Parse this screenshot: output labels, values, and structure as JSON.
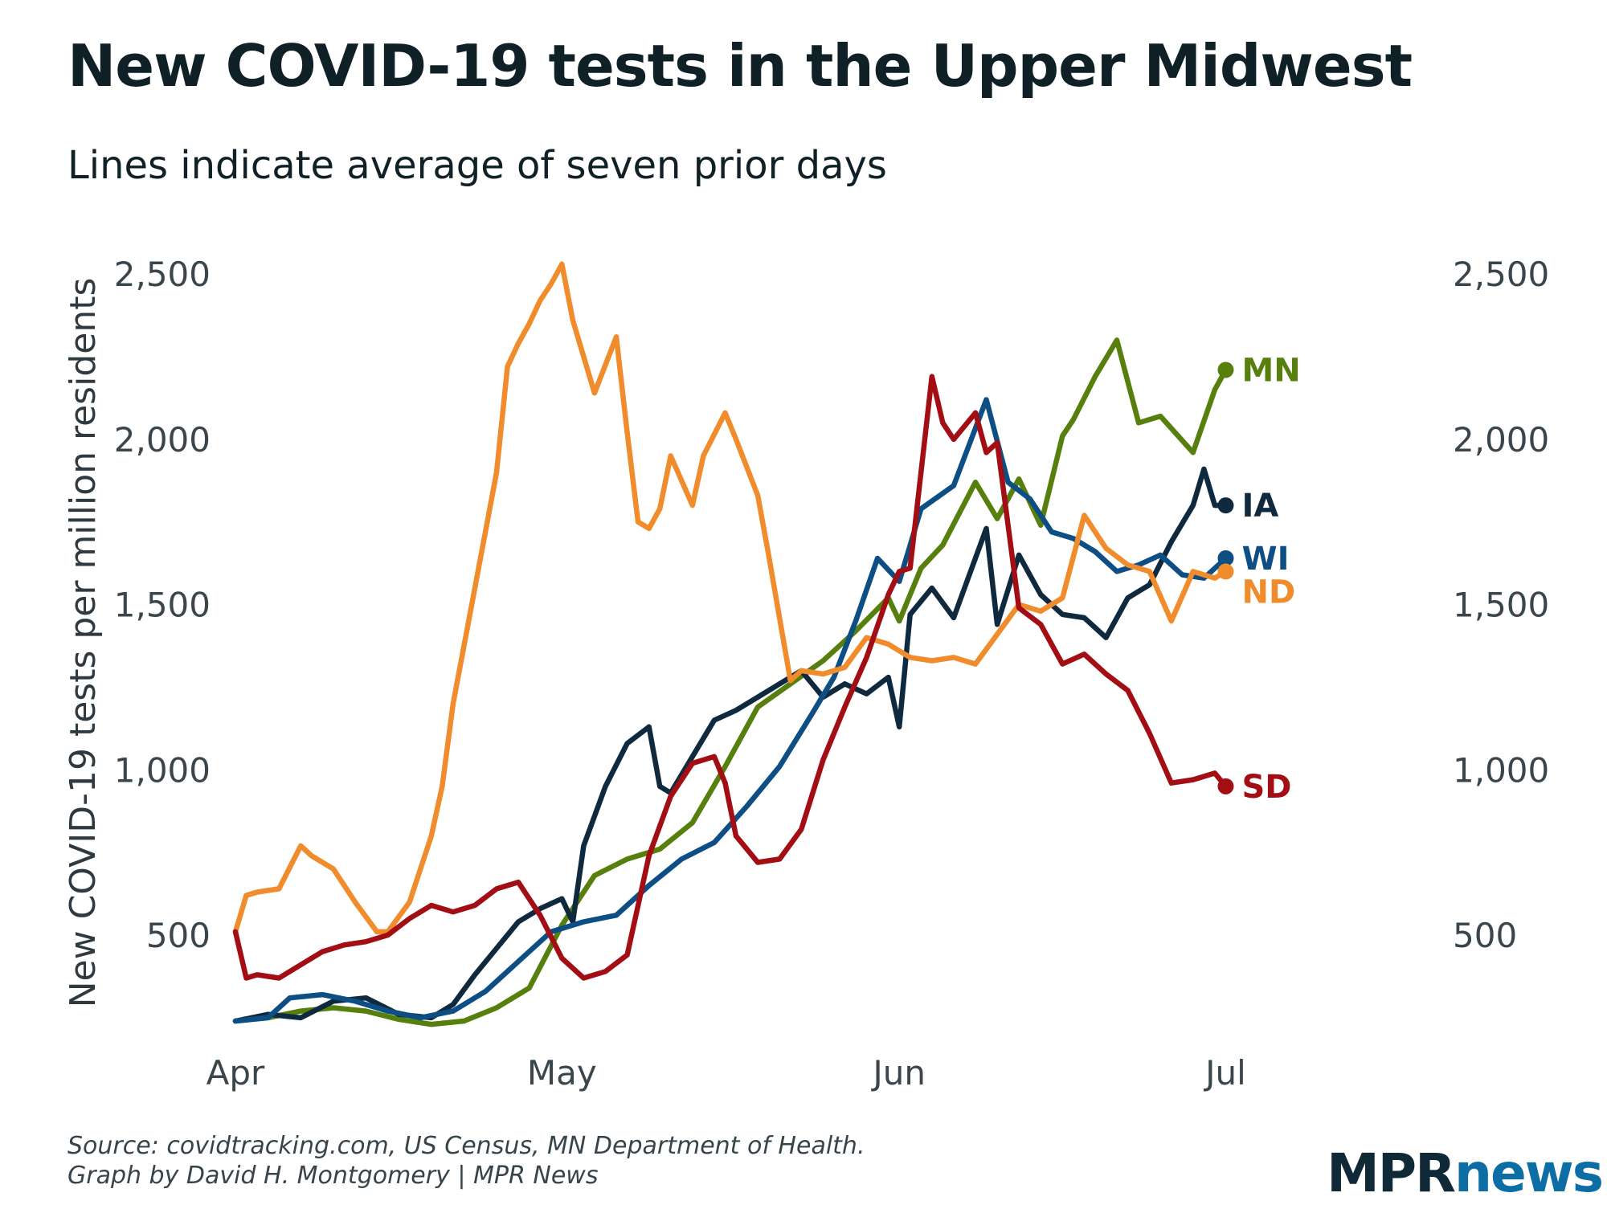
{
  "title": "New COVID-19 tests in the Upper Midwest",
  "subtitle": "Lines indicate average of seven prior days",
  "source": {
    "line1": "Source: covidtracking.com, US Census, MN Department of Health.",
    "line2": "Graph by David H. Montgomery | MPR News"
  },
  "logo": {
    "part1": "MPR",
    "part2": "news",
    "color1": "#0f2a36",
    "color2": "#0d6ea5"
  },
  "chart_data": {
    "type": "line",
    "title": "New COVID-19 tests in the Upper Midwest",
    "ylabel": "New COVID-19 tests per million residents",
    "xlabel": "",
    "ylim": [
      150,
      2600
    ],
    "xlim": [
      0,
      103
    ],
    "yticks": [
      500,
      1000,
      1500,
      2000,
      2500
    ],
    "ytick_labels": [
      "500",
      "1,000",
      "1,500",
      "2,000",
      "2,500"
    ],
    "xticks": [
      0,
      30,
      61,
      91
    ],
    "xtick_labels": [
      "Apr",
      "May",
      "Jun",
      "Jul"
    ],
    "grid": false,
    "series": [
      {
        "name": "MN",
        "color": "#577f0d",
        "x": [
          0,
          3,
          6,
          9,
          12,
          15,
          18,
          21,
          24,
          27,
          30,
          33,
          36,
          39,
          42,
          45,
          48,
          51,
          54,
          57,
          60,
          61,
          63,
          65,
          68,
          70,
          72,
          74,
          76,
          77,
          79,
          81,
          83,
          85,
          88,
          90,
          91
        ],
        "y": [
          240,
          250,
          270,
          280,
          270,
          245,
          230,
          240,
          280,
          340,
          530,
          680,
          730,
          760,
          840,
          1010,
          1190,
          1260,
          1330,
          1420,
          1520,
          1450,
          1610,
          1680,
          1870,
          1760,
          1880,
          1740,
          2010,
          2060,
          2190,
          2300,
          2050,
          2070,
          1960,
          2150,
          2210
        ]
      },
      {
        "name": "IA",
        "color": "#0f2a3f",
        "x": [
          0,
          3,
          6,
          9,
          12,
          15,
          18,
          20,
          22,
          24,
          26,
          28,
          30,
          31,
          32,
          34,
          36,
          38,
          39,
          40,
          42,
          44,
          46,
          48,
          50,
          52,
          54,
          56,
          58,
          60,
          61,
          62,
          64,
          66,
          67,
          69,
          70,
          72,
          74,
          76,
          78,
          80,
          82,
          84,
          86,
          88,
          89,
          90,
          91
        ],
        "y": [
          240,
          260,
          250,
          300,
          310,
          260,
          250,
          290,
          380,
          460,
          540,
          580,
          610,
          540,
          770,
          950,
          1080,
          1130,
          950,
          930,
          1040,
          1150,
          1180,
          1220,
          1260,
          1300,
          1220,
          1260,
          1230,
          1280,
          1130,
          1470,
          1550,
          1460,
          1550,
          1730,
          1440,
          1650,
          1530,
          1470,
          1460,
          1400,
          1520,
          1560,
          1690,
          1800,
          1910,
          1800,
          1800
        ]
      },
      {
        "name": "WI",
        "color": "#0d4e84",
        "x": [
          0,
          3,
          5,
          8,
          11,
          14,
          17,
          20,
          23,
          26,
          29,
          32,
          35,
          38,
          41,
          44,
          47,
          50,
          53,
          55,
          57,
          59,
          61,
          63,
          66,
          69,
          71,
          73,
          75,
          77,
          79,
          81,
          83,
          85,
          87,
          89,
          91
        ],
        "y": [
          240,
          250,
          310,
          320,
          300,
          270,
          250,
          270,
          330,
          420,
          510,
          540,
          560,
          650,
          730,
          780,
          890,
          1010,
          1170,
          1280,
          1450,
          1640,
          1570,
          1790,
          1860,
          2120,
          1870,
          1820,
          1720,
          1700,
          1660,
          1600,
          1620,
          1650,
          1590,
          1580,
          1640
        ]
      },
      {
        "name": "ND",
        "color": "#f08c2c",
        "x": [
          0,
          1,
          2,
          4,
          6,
          7,
          9,
          11,
          13,
          14,
          16,
          18,
          19,
          20,
          22,
          24,
          25,
          26,
          27,
          28,
          29,
          30,
          31,
          33,
          35,
          36,
          37,
          38,
          39,
          40,
          42,
          43,
          45,
          46,
          48,
          49,
          51,
          52,
          54,
          56,
          58,
          60,
          62,
          64,
          66,
          68,
          70,
          72,
          74,
          76,
          78,
          80,
          82,
          84,
          86,
          88,
          90,
          91
        ],
        "y": [
          510,
          620,
          630,
          640,
          770,
          740,
          700,
          600,
          510,
          510,
          600,
          800,
          950,
          1200,
          1550,
          1900,
          2220,
          2290,
          2350,
          2420,
          2470,
          2530,
          2360,
          2140,
          2310,
          2020,
          1750,
          1730,
          1790,
          1950,
          1800,
          1950,
          2080,
          2000,
          1830,
          1650,
          1270,
          1300,
          1290,
          1310,
          1400,
          1380,
          1340,
          1330,
          1340,
          1320,
          1410,
          1500,
          1480,
          1520,
          1770,
          1670,
          1620,
          1600,
          1450,
          1600,
          1580,
          1600
        ]
      },
      {
        "name": "SD",
        "color": "#a30d14",
        "x": [
          0,
          1,
          2,
          4,
          6,
          8,
          10,
          12,
          14,
          16,
          18,
          20,
          22,
          24,
          26,
          28,
          30,
          32,
          34,
          36,
          38,
          40,
          42,
          44,
          45,
          46,
          48,
          50,
          52,
          54,
          56,
          58,
          60,
          61,
          62,
          64,
          65,
          66,
          68,
          69,
          70,
          72,
          74,
          76,
          78,
          80,
          82,
          84,
          86,
          88,
          90,
          91
        ],
        "y": [
          510,
          370,
          380,
          370,
          410,
          450,
          470,
          480,
          500,
          550,
          590,
          570,
          590,
          640,
          660,
          560,
          430,
          370,
          390,
          440,
          740,
          920,
          1020,
          1040,
          960,
          800,
          720,
          730,
          820,
          1030,
          1190,
          1340,
          1530,
          1600,
          1610,
          2190,
          2050,
          2000,
          2080,
          1960,
          1990,
          1490,
          1440,
          1320,
          1350,
          1290,
          1240,
          1110,
          960,
          970,
          990,
          950
        ]
      }
    ],
    "end_labels": [
      "MN",
      "IA",
      "WI",
      "ND",
      "SD"
    ]
  }
}
